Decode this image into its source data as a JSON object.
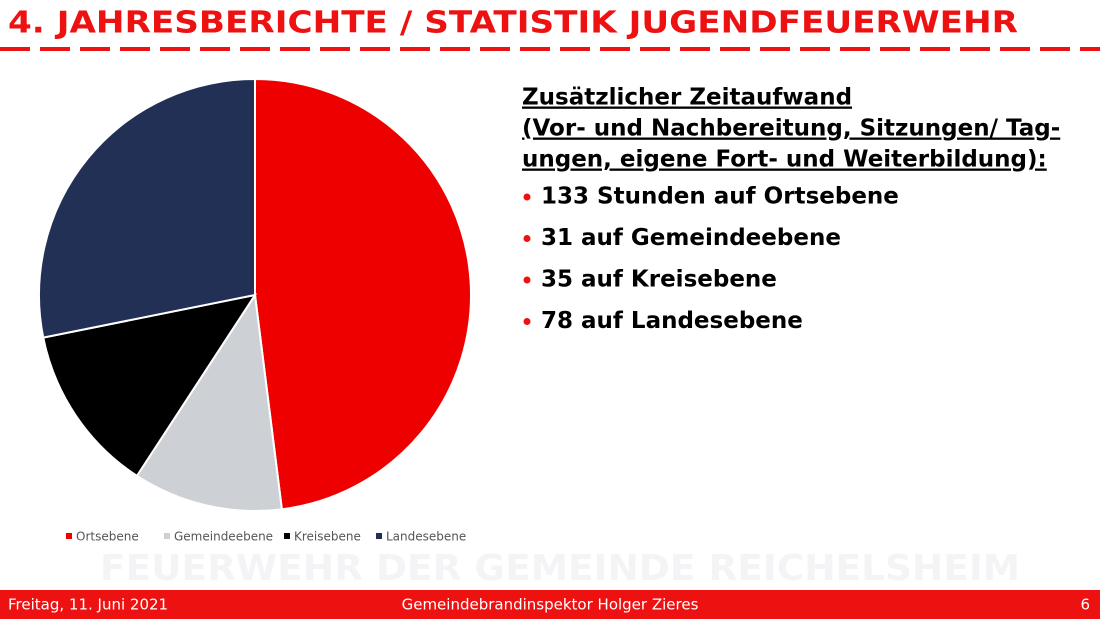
{
  "header": {
    "title": "4. JAHRESBERICHTE / STATISTIK JUGENDFEUERWEHR"
  },
  "chart_data": {
    "type": "pie",
    "categories": [
      "Ortsebene",
      "Gemeindeebene",
      "Kreisebene",
      "Landesebene"
    ],
    "values": [
      133,
      31,
      35,
      78
    ],
    "colors": [
      "#ee0000",
      "#cdd1d6",
      "#000000",
      "#233055"
    ],
    "legend": "bottom"
  },
  "text": {
    "heading": [
      "Zusätzlicher Zeitaufwand",
      "(Vor- und Nachbereitung, Sitzungen/ Tag-",
      "ungen, eigene Fort- und Weiterbildung):"
    ],
    "bullets": [
      "133 Stunden auf Ortsebene",
      "31 auf Gemeindeebene",
      "35 auf Kreisebene",
      "78 auf Landesebene"
    ]
  },
  "watermark": "FEUERWEHR DER GEMEINDE REICHELSHEIM",
  "footer": {
    "date": "Freitag, 11. Juni 2021",
    "presenter": "Gemeindebrandinspektor Holger Zieres",
    "page": "6"
  }
}
